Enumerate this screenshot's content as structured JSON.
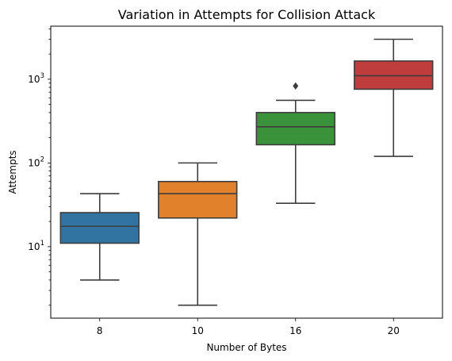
{
  "chart_data": {
    "type": "box",
    "title": "Variation in Attempts for Collision Attack",
    "xlabel": "Number of Bytes",
    "ylabel": "Attempts",
    "yscale": "log",
    "ylim": [
      1.4,
      4300
    ],
    "y_major_ticks": [
      {
        "value": 10,
        "base": "10",
        "exp": "1"
      },
      {
        "value": 100,
        "base": "10",
        "exp": "2"
      },
      {
        "value": 1000,
        "base": "10",
        "exp": "3"
      }
    ],
    "grid": false,
    "categories": [
      "8",
      "10",
      "16",
      "20"
    ],
    "boxes": [
      {
        "category": "8",
        "color": "#3274a1",
        "whisker_low": 4,
        "q1": 11,
        "median": 17.5,
        "q3": 25.5,
        "whisker_high": 43,
        "outliers": []
      },
      {
        "category": "10",
        "color": "#e1812c",
        "whisker_low": 2,
        "q1": 22,
        "median": 43,
        "q3": 60,
        "whisker_high": 100,
        "outliers": []
      },
      {
        "category": "16",
        "color": "#3a923a",
        "whisker_low": 33,
        "q1": 165,
        "median": 270,
        "q3": 400,
        "whisker_high": 560,
        "outliers": [
          830
        ]
      },
      {
        "category": "20",
        "color": "#c03d3e",
        "whisker_low": 120,
        "q1": 760,
        "median": 1100,
        "q3": 1650,
        "whisker_high": 3000,
        "outliers": []
      }
    ]
  }
}
